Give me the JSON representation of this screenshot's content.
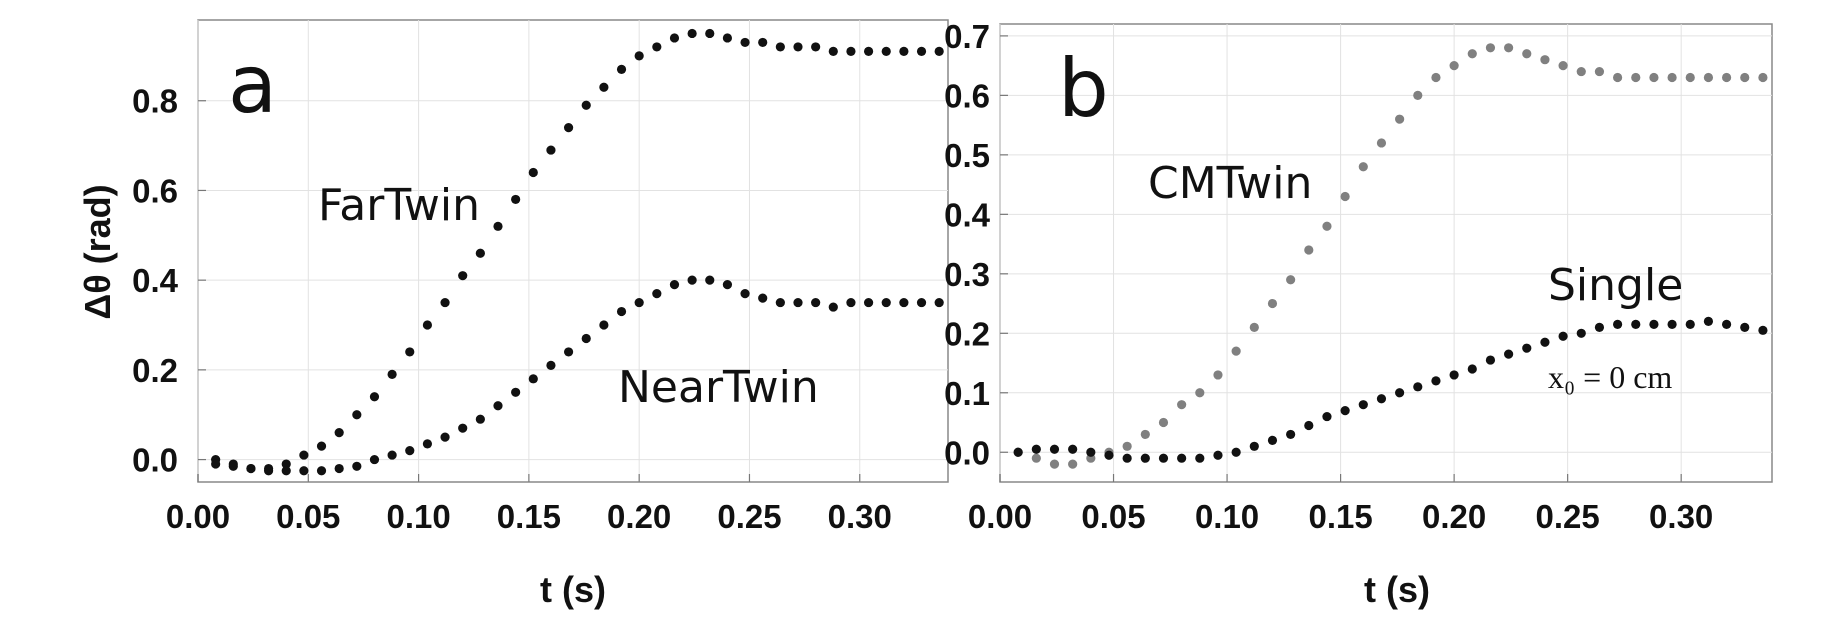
{
  "chart_data": [
    {
      "type": "scatter",
      "panel": "a",
      "xlabel": "t (s)",
      "ylabel": "Δθ (rad)",
      "xlim": [
        0.0,
        0.34
      ],
      "ylim": [
        -0.05,
        0.98
      ],
      "grid": true,
      "xticks": [
        "0.00",
        "0.05",
        "0.10",
        "0.15",
        "0.20",
        "0.25",
        "0.30"
      ],
      "yticks": [
        "0.0",
        "0.2",
        "0.4",
        "0.6",
        "0.8"
      ],
      "series": [
        {
          "name": "FarTwin",
          "color": "#111111",
          "x": [
            0.008,
            0.016,
            0.024,
            0.032,
            0.04,
            0.048,
            0.056,
            0.064,
            0.072,
            0.08,
            0.088,
            0.096,
            0.104,
            0.112,
            0.12,
            0.128,
            0.136,
            0.144,
            0.152,
            0.16,
            0.168,
            0.176,
            0.184,
            0.192,
            0.2,
            0.208,
            0.216,
            0.224,
            0.232,
            0.24,
            0.248,
            0.256,
            0.264,
            0.272,
            0.28,
            0.288,
            0.296,
            0.304,
            0.312,
            0.32,
            0.328,
            0.336
          ],
          "y": [
            0.0,
            -0.01,
            -0.02,
            -0.02,
            -0.01,
            0.01,
            0.03,
            0.06,
            0.1,
            0.14,
            0.19,
            0.24,
            0.3,
            0.35,
            0.41,
            0.46,
            0.52,
            0.58,
            0.64,
            0.69,
            0.74,
            0.79,
            0.83,
            0.87,
            0.9,
            0.92,
            0.94,
            0.95,
            0.95,
            0.94,
            0.93,
            0.93,
            0.92,
            0.92,
            0.92,
            0.91,
            0.91,
            0.91,
            0.91,
            0.91,
            0.91,
            0.91
          ]
        },
        {
          "name": "NearTwin",
          "color": "#111111",
          "x": [
            0.008,
            0.016,
            0.024,
            0.032,
            0.04,
            0.048,
            0.056,
            0.064,
            0.072,
            0.08,
            0.088,
            0.096,
            0.104,
            0.112,
            0.12,
            0.128,
            0.136,
            0.144,
            0.152,
            0.16,
            0.168,
            0.176,
            0.184,
            0.192,
            0.2,
            0.208,
            0.216,
            0.224,
            0.232,
            0.24,
            0.248,
            0.256,
            0.264,
            0.272,
            0.28,
            0.288,
            0.296,
            0.304,
            0.312,
            0.32,
            0.328,
            0.336
          ],
          "y": [
            -0.01,
            -0.015,
            -0.02,
            -0.025,
            -0.025,
            -0.025,
            -0.025,
            -0.02,
            -0.015,
            0.0,
            0.01,
            0.02,
            0.035,
            0.05,
            0.07,
            0.09,
            0.12,
            0.15,
            0.18,
            0.21,
            0.24,
            0.27,
            0.3,
            0.33,
            0.35,
            0.37,
            0.39,
            0.4,
            0.4,
            0.39,
            0.37,
            0.36,
            0.35,
            0.35,
            0.35,
            0.34,
            0.35,
            0.35,
            0.35,
            0.35,
            0.35,
            0.35
          ]
        }
      ]
    },
    {
      "type": "scatter",
      "panel": "b",
      "xlabel": "t (s)",
      "ylabel": "",
      "xlim": [
        0.0,
        0.34
      ],
      "ylim": [
        -0.05,
        0.72
      ],
      "grid": true,
      "xticks": [
        "0.00",
        "0.05",
        "0.10",
        "0.15",
        "0.20",
        "0.25",
        "0.30"
      ],
      "yticks": [
        "0.0",
        "0.1",
        "0.2",
        "0.3",
        "0.4",
        "0.5",
        "0.6",
        "0.7"
      ],
      "annotation": "x₀ = 0 cm",
      "series": [
        {
          "name": "CMTwin",
          "color": "#808080",
          "x": [
            0.008,
            0.016,
            0.024,
            0.032,
            0.04,
            0.048,
            0.056,
            0.064,
            0.072,
            0.08,
            0.088,
            0.096,
            0.104,
            0.112,
            0.12,
            0.128,
            0.136,
            0.144,
            0.152,
            0.16,
            0.168,
            0.176,
            0.184,
            0.192,
            0.2,
            0.208,
            0.216,
            0.224,
            0.232,
            0.24,
            0.248,
            0.256,
            0.264,
            0.272,
            0.28,
            0.288,
            0.296,
            0.304,
            0.312,
            0.32,
            0.328,
            0.336
          ],
          "y": [
            0.0,
            -0.01,
            -0.02,
            -0.02,
            -0.01,
            0.0,
            0.01,
            0.03,
            0.05,
            0.08,
            0.1,
            0.13,
            0.17,
            0.21,
            0.25,
            0.29,
            0.34,
            0.38,
            0.43,
            0.48,
            0.52,
            0.56,
            0.6,
            0.63,
            0.65,
            0.67,
            0.68,
            0.68,
            0.67,
            0.66,
            0.65,
            0.64,
            0.64,
            0.63,
            0.63,
            0.63,
            0.63,
            0.63,
            0.63,
            0.63,
            0.63,
            0.63
          ]
        },
        {
          "name": "Single",
          "color": "#111111",
          "x": [
            0.008,
            0.016,
            0.024,
            0.032,
            0.04,
            0.048,
            0.056,
            0.064,
            0.072,
            0.08,
            0.088,
            0.096,
            0.104,
            0.112,
            0.12,
            0.128,
            0.136,
            0.144,
            0.152,
            0.16,
            0.168,
            0.176,
            0.184,
            0.192,
            0.2,
            0.208,
            0.216,
            0.224,
            0.232,
            0.24,
            0.248,
            0.256,
            0.264,
            0.272,
            0.28,
            0.288,
            0.296,
            0.304,
            0.312,
            0.32,
            0.328,
            0.336
          ],
          "y": [
            0.0,
            0.005,
            0.005,
            0.005,
            0.0,
            -0.005,
            -0.01,
            -0.01,
            -0.01,
            -0.01,
            -0.01,
            -0.005,
            0.0,
            0.01,
            0.02,
            0.03,
            0.045,
            0.06,
            0.07,
            0.08,
            0.09,
            0.1,
            0.11,
            0.12,
            0.13,
            0.14,
            0.155,
            0.165,
            0.175,
            0.185,
            0.195,
            0.2,
            0.21,
            0.215,
            0.215,
            0.215,
            0.215,
            0.215,
            0.22,
            0.215,
            0.21,
            0.205
          ]
        }
      ]
    }
  ],
  "labels": {
    "panel_a": "a",
    "panel_b": "b",
    "fartwin": "FarTwin",
    "neartwin": "NearTwin",
    "cmtwin": "CMTwin",
    "single": "Single",
    "x0": "x₀ = 0 cm",
    "xlabel_a": "t (s)",
    "xlabel_b": "t (s)",
    "ylabel_a": "Δθ (rad)"
  }
}
